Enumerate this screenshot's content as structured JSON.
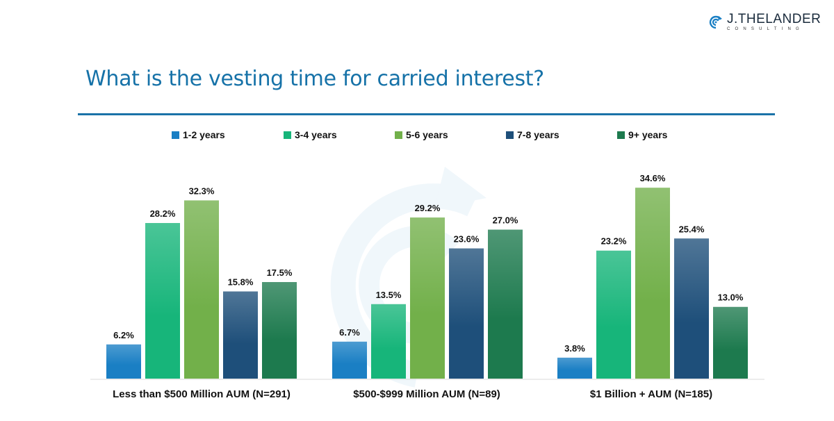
{
  "logo": {
    "name": "J.THELANDER",
    "sub": "CONSULTING",
    "icon": "spiral-logo-icon"
  },
  "title": "What is the vesting time for carried interest?",
  "chart_data": {
    "type": "bar",
    "title": "What is the vesting time for carried interest?",
    "categories": [
      "Less than $500 Million AUM (N=291)",
      "$500-$999 Million AUM (N=89)",
      "$1 Billion + AUM (N=185)"
    ],
    "series": [
      {
        "name": "1-2 years",
        "color": "#1a7fc4",
        "values": [
          6.2,
          6.7,
          3.8
        ]
      },
      {
        "name": "3-4 years",
        "color": "#17b57a",
        "values": [
          28.2,
          13.5,
          23.2
        ]
      },
      {
        "name": "5-6 years",
        "color": "#72b04a",
        "values": [
          32.3,
          29.2,
          34.6
        ]
      },
      {
        "name": "7-8 years",
        "color": "#1e4f7a",
        "values": [
          15.8,
          23.6,
          25.4
        ]
      },
      {
        "name": "9+ years",
        "color": "#1d7a4e",
        "values": [
          17.5,
          27.0,
          13.0
        ]
      }
    ],
    "value_format": "%",
    "xlabel": "",
    "ylabel": "",
    "ylim": [
      0,
      35
    ],
    "grid": false,
    "legend": "top-center"
  }
}
